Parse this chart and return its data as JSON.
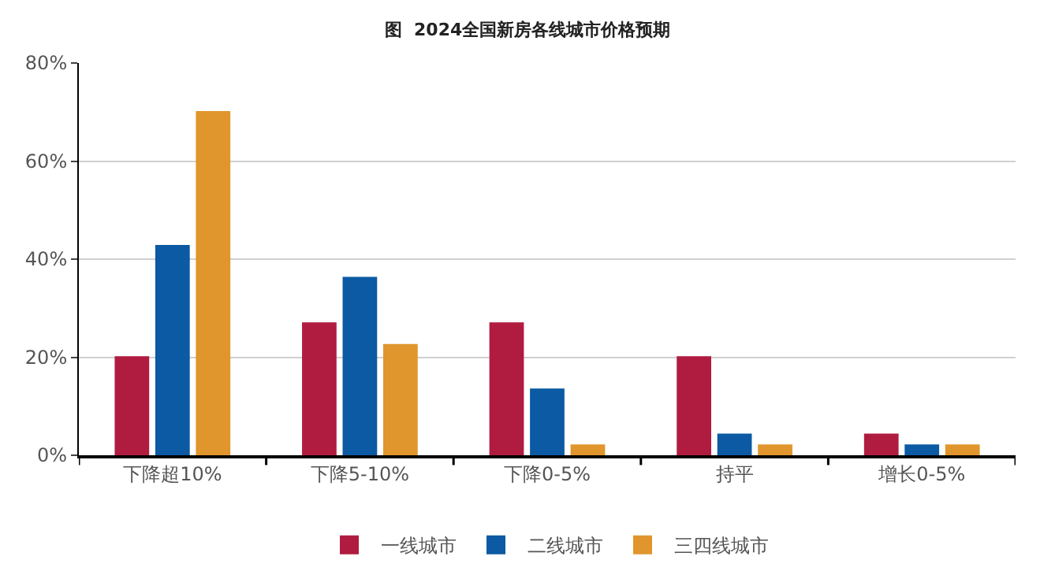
{
  "chart_data": {
    "type": "bar",
    "title": "图  2024全国新房各线城市价格预期",
    "categories": [
      "下降超10%",
      "下降5-10%",
      "下降0-5%",
      "持平",
      "增长0-5%"
    ],
    "series": [
      {
        "name": "一线城市",
        "color": "#b01c3f",
        "values": [
          20.2,
          27.1,
          27.1,
          20.2,
          4.4
        ]
      },
      {
        "name": "二线城市",
        "color": "#0b5aa3",
        "values": [
          42.9,
          36.4,
          13.6,
          4.4,
          2.2
        ]
      },
      {
        "name": "三四线城市",
        "color": "#e0962c",
        "values": [
          70.2,
          22.7,
          2.2,
          2.2,
          2.2
        ]
      }
    ],
    "ylim": [
      0,
      80
    ],
    "yticks": [
      {
        "value": 0,
        "label": "0%"
      },
      {
        "value": 20,
        "label": "20%"
      },
      {
        "value": 40,
        "label": "40%"
      },
      {
        "value": 60,
        "label": "60%"
      },
      {
        "value": 80,
        "label": "80%"
      }
    ],
    "grid": "y",
    "legend": "bottom"
  }
}
